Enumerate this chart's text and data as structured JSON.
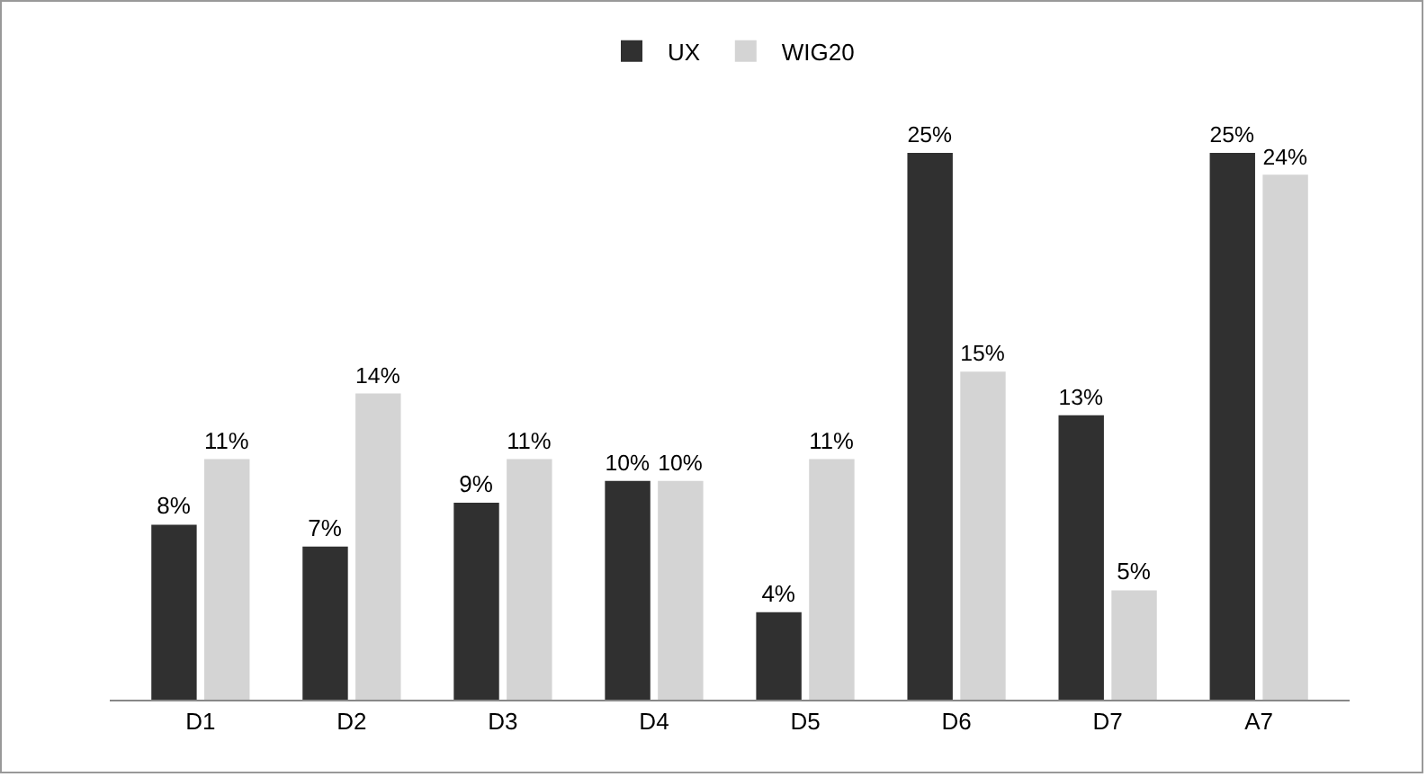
{
  "chart_data": {
    "type": "bar",
    "categories": [
      "D1",
      "D2",
      "D3",
      "D4",
      "D5",
      "D6",
      "D7",
      "A7"
    ],
    "series": [
      {
        "name": "UX",
        "color": "#303030",
        "values": [
          8,
          7,
          9,
          10,
          4,
          25,
          13,
          25
        ],
        "value_labels": [
          "8%",
          "7%",
          "9%",
          "10%",
          "4%",
          "25%",
          "13%",
          "25%"
        ]
      },
      {
        "name": "WIG20",
        "color": "#d4d4d4",
        "values": [
          11,
          14,
          11,
          10,
          11,
          15,
          5,
          24
        ],
        "value_labels": [
          "11%",
          "14%",
          "11%",
          "10%",
          "11%",
          "15%",
          "5%",
          "24%"
        ]
      }
    ],
    "legend": "top",
    "grid": false
  }
}
